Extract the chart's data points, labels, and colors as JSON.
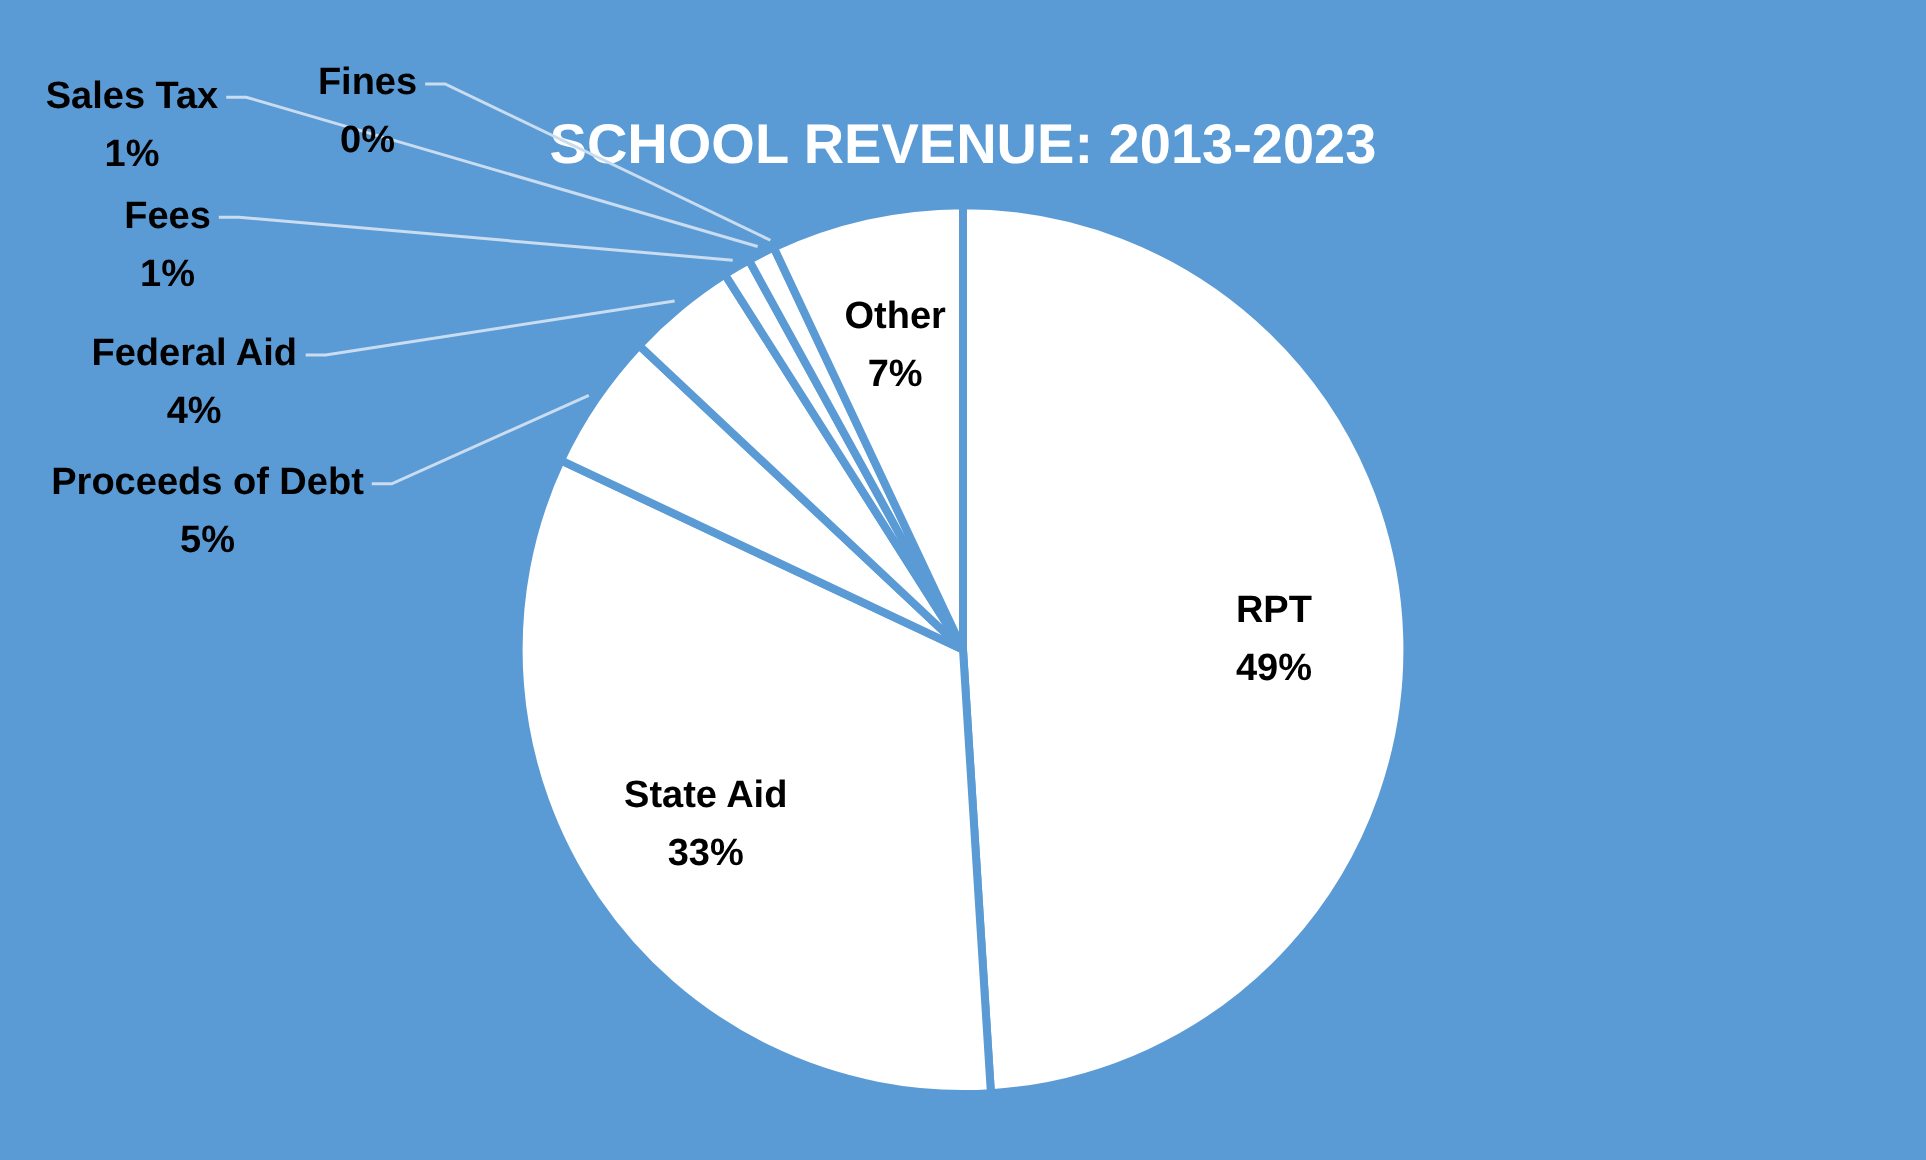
{
  "chart_data": {
    "type": "pie",
    "title": "SCHOOL REVENUE: 2013-2023",
    "categories": [
      "RPT",
      "State Aid",
      "Proceeds of Debt",
      "Federal Aid",
      "Fees",
      "Sales Tax",
      "Fines",
      "Other"
    ],
    "values": [
      49,
      33,
      5,
      4,
      1,
      1,
      0,
      7
    ],
    "colors": [
      "#ffffff",
      "#ffffff",
      "#ffffff",
      "#ffffff",
      "#ffffff",
      "#ffffff",
      "#ffffff",
      "#ffffff"
    ],
    "value_labels": [
      "49%",
      "33%",
      "5%",
      "4%",
      "1%",
      "1%",
      "0%",
      "7%"
    ],
    "legend": false
  }
}
